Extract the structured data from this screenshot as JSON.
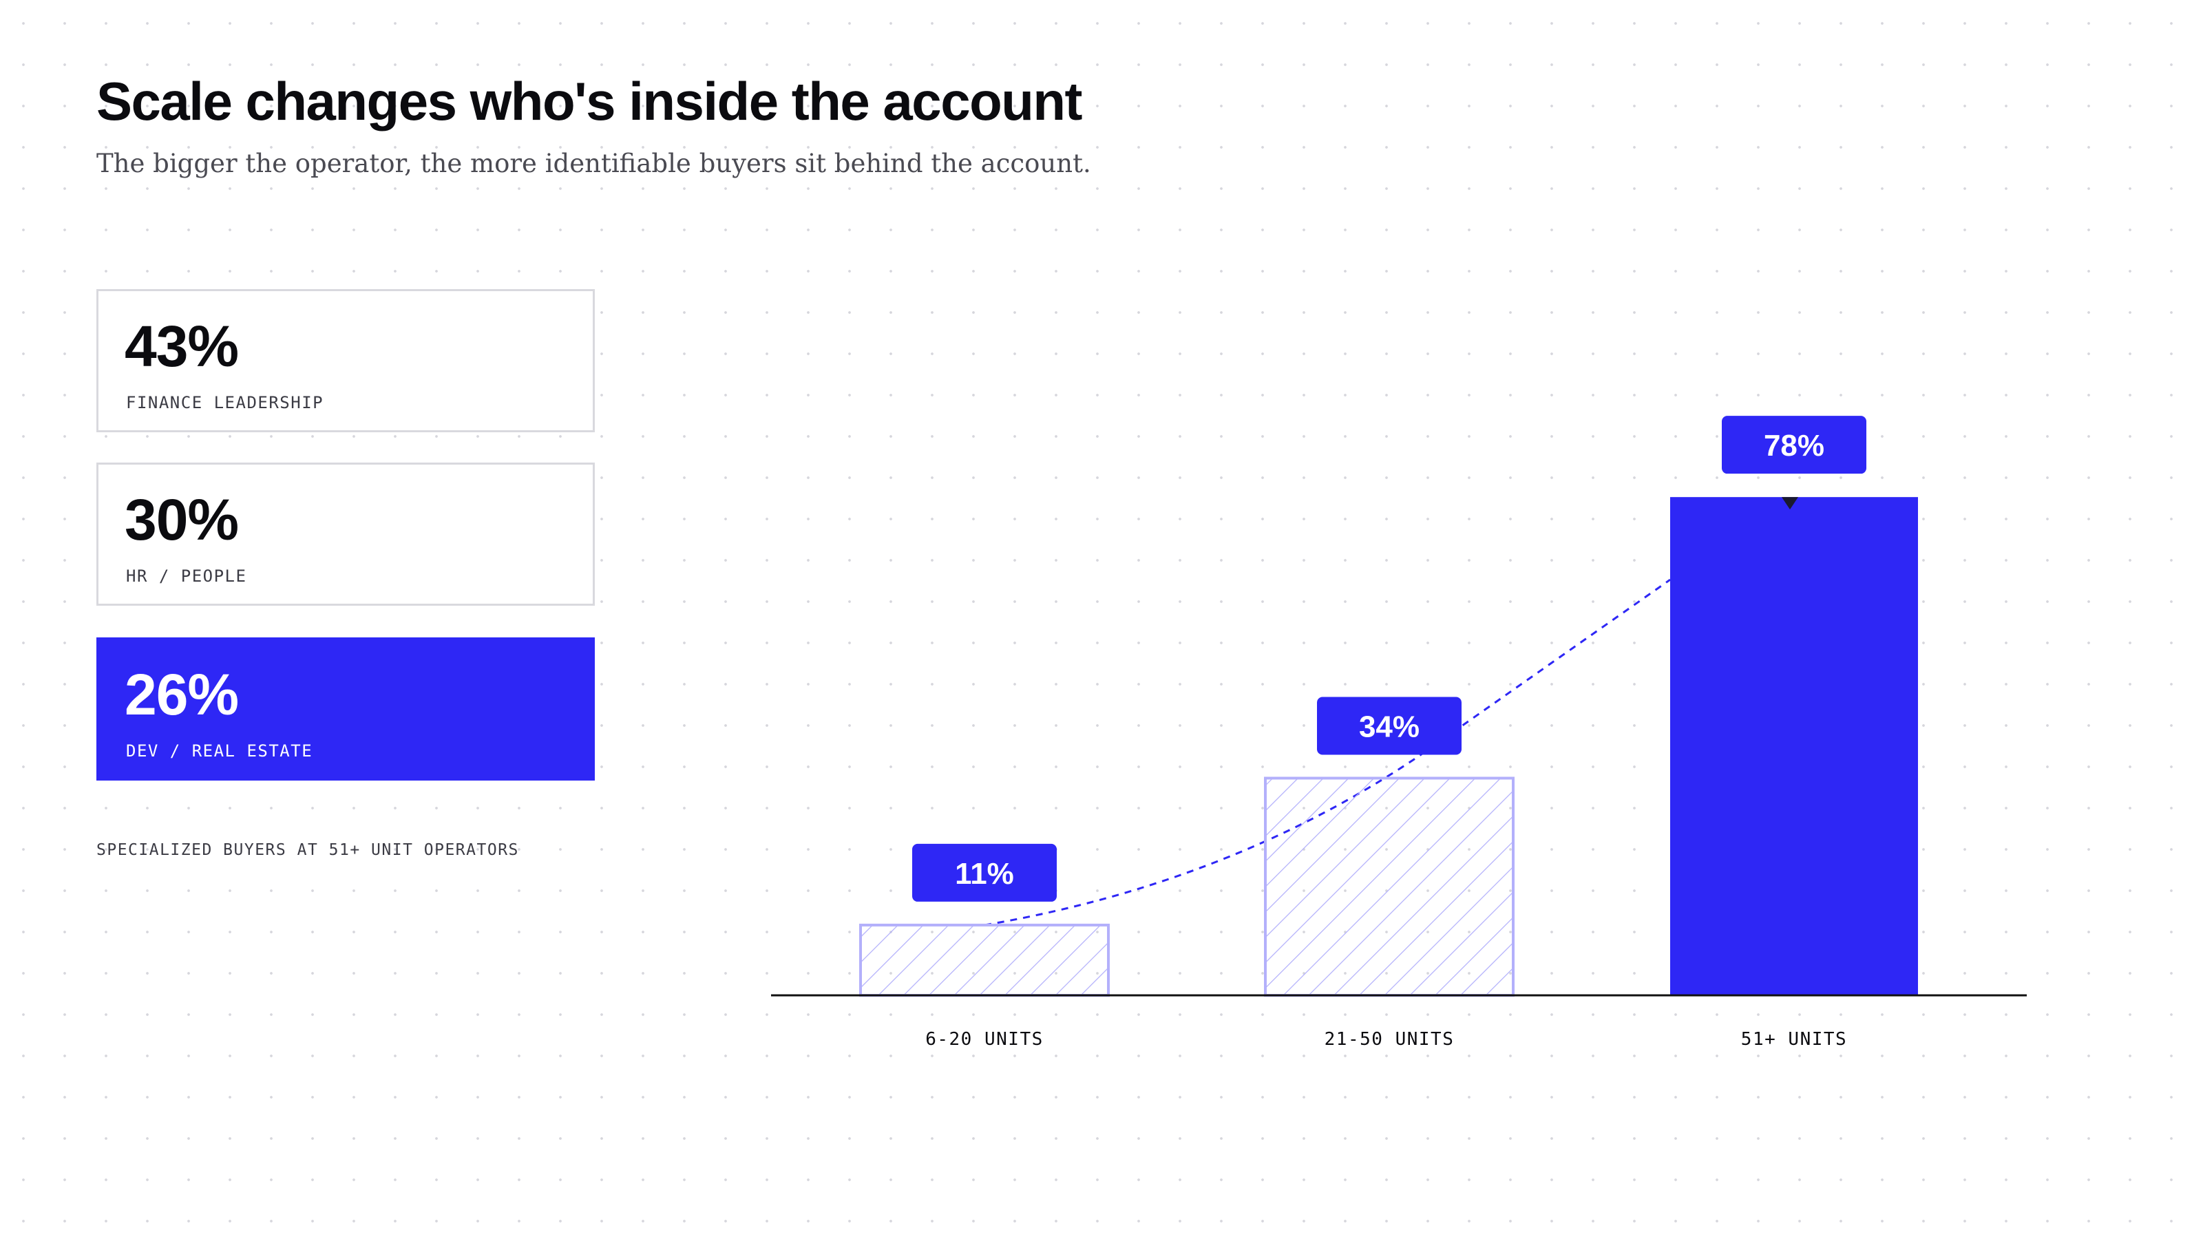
{
  "header": {
    "title": "Scale changes who's inside the account",
    "subtitle": "The bigger the operator, the more identifiable buyers sit behind the account."
  },
  "cards": [
    {
      "value": "43%",
      "label": "FINANCE LEADERSHIP",
      "highlight": false
    },
    {
      "value": "30%",
      "label": "HR / PEOPLE",
      "highlight": false
    },
    {
      "value": "26%",
      "label": "DEV / REAL ESTATE",
      "highlight": true
    }
  ],
  "footnote": "SPECIALIZED BUYERS AT 51+ UNIT OPERATORS",
  "colors": {
    "accent": "#2e27f5",
    "hatch": "#b3b0fb",
    "axis": "#111111",
    "text": "#0b0b0f",
    "muted": "#3b3b44"
  },
  "chart_data": {
    "type": "bar",
    "categories": [
      "6-20 UNITS",
      "21-50 UNITS",
      "51+ UNITS"
    ],
    "values": [
      11,
      34,
      78
    ],
    "value_labels": [
      "11%",
      "34%",
      "78%"
    ],
    "styles": [
      "hatched",
      "hatched",
      "solid"
    ],
    "trendline": "dashed",
    "ylim": [
      0,
      100
    ],
    "grid": false,
    "legend": "none",
    "title": "",
    "xlabel": "",
    "ylabel": ""
  }
}
